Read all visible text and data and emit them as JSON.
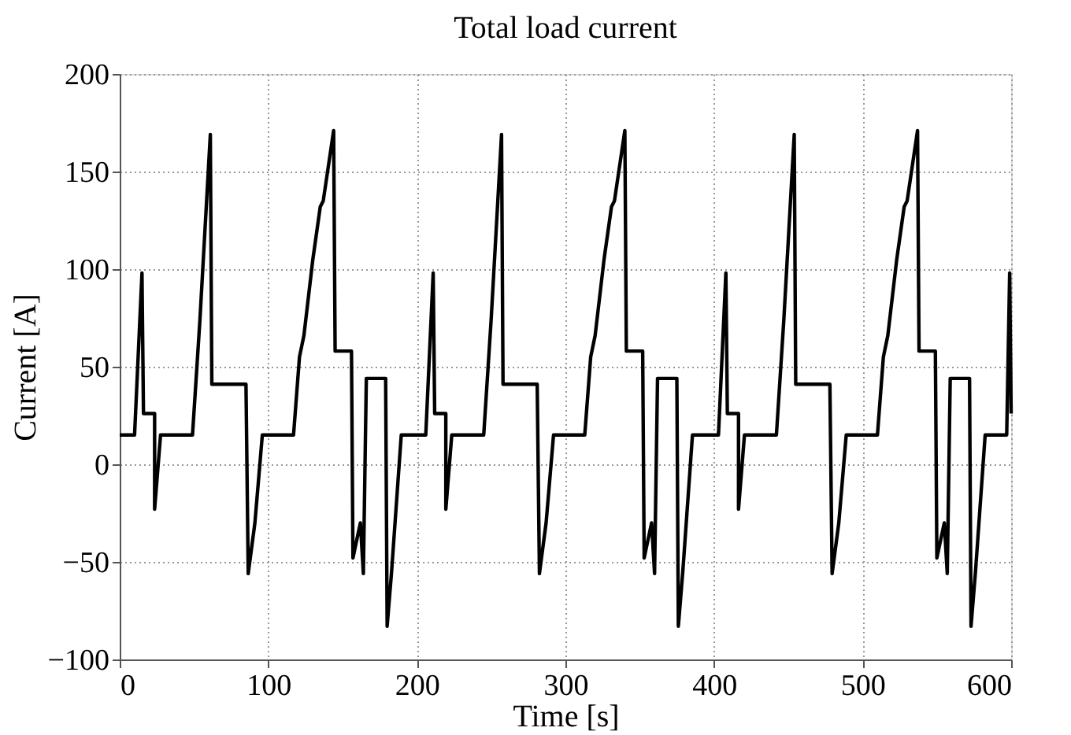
{
  "chart_data": {
    "type": "line",
    "title": "Total load current",
    "xlabel": "Time [s]",
    "ylabel": "Current [A]",
    "xlim": [
      0,
      600
    ],
    "xticks": [
      0,
      100,
      200,
      300,
      400,
      500,
      600
    ],
    "ylim": [
      -100,
      200
    ],
    "yticks": [
      -100,
      -50,
      0,
      50,
      100,
      150,
      200
    ],
    "grid": true,
    "line_style": "solid",
    "series": [
      {
        "color": "#000000",
        "x": [
          0,
          10,
          15,
          16,
          23.5,
          23.5,
          27.5,
          49,
          54,
          61,
          62,
          85,
          86.5,
          91,
          96,
          117,
          121,
          124,
          130,
          135,
          137,
          144,
          145,
          156,
          157,
          162,
          164,
          166,
          179,
          180,
          183,
          189.5,
          206,
          211,
          212,
          219.5,
          219.5,
          223.5,
          245,
          250,
          257,
          258,
          281,
          282.5,
          287,
          292,
          313,
          317,
          320,
          326,
          331,
          333,
          340,
          341,
          352,
          353,
          358,
          360,
          362,
          375,
          376,
          379,
          385.5,
          403,
          408,
          409,
          416.5,
          416.5,
          420.5,
          442,
          447,
          454,
          455,
          478,
          479.5,
          484,
          489,
          510,
          514,
          517,
          523,
          528,
          530,
          537,
          538,
          549,
          550,
          555,
          557,
          559,
          572,
          573,
          576,
          582.5,
          597,
          599,
          600
        ],
        "values": [
          15,
          15,
          98,
          26,
          26,
          -23,
          15,
          15,
          74,
          169,
          41,
          41,
          -56,
          -30,
          15,
          15,
          55,
          66,
          105,
          132,
          135,
          171,
          58,
          58,
          -48,
          -30,
          -56,
          44,
          44,
          -83,
          -55,
          15,
          15,
          98,
          26,
          26,
          -23,
          15,
          15,
          74,
          169,
          41,
          41,
          -56,
          -30,
          15,
          15,
          55,
          66,
          105,
          132,
          135,
          171,
          58,
          58,
          -48,
          -30,
          -56,
          44,
          44,
          -83,
          -55,
          15,
          15,
          98,
          26,
          26,
          -23,
          15,
          15,
          74,
          169,
          41,
          41,
          -56,
          -30,
          15,
          15,
          55,
          66,
          105,
          132,
          135,
          171,
          58,
          58,
          -48,
          -30,
          -56,
          44,
          44,
          -83,
          -55,
          15,
          15,
          98,
          26
        ]
      }
    ]
  }
}
